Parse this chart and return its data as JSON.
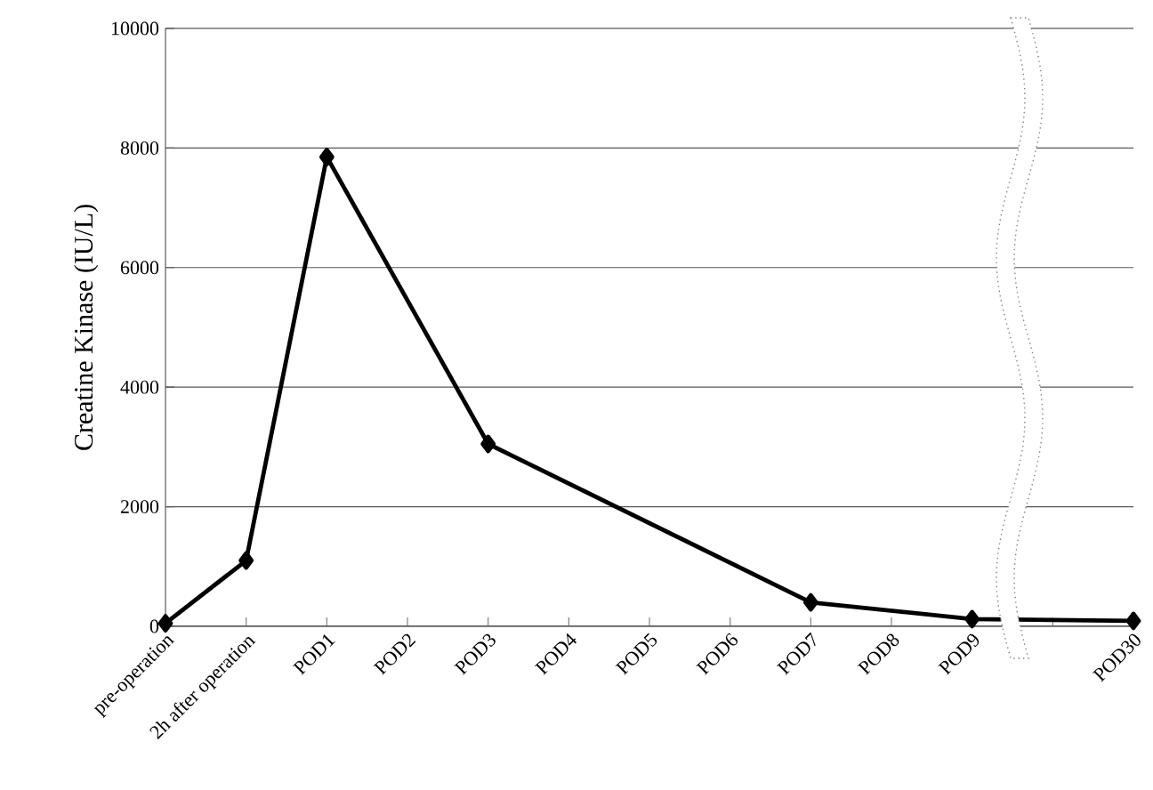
{
  "chart_data": {
    "type": "line",
    "ylabel": "Creatine Kinase (IU/L)",
    "categories": [
      "pre-operation",
      "2h after operation",
      "POD1",
      "POD2",
      "POD3",
      "POD4",
      "POD5",
      "POD6",
      "POD7",
      "POD8",
      "POD9",
      null,
      "POD30"
    ],
    "series": [
      {
        "color": "#000000",
        "values": [
          50,
          1100,
          7850,
          null,
          3050,
          null,
          null,
          null,
          400,
          null,
          120,
          null,
          90
        ]
      }
    ],
    "ylim": [
      0,
      10000
    ],
    "yticks": [
      0,
      2000,
      4000,
      6000,
      8000,
      10000
    ],
    "grid": "y",
    "marker": "diamond",
    "line_style": "solid"
  }
}
